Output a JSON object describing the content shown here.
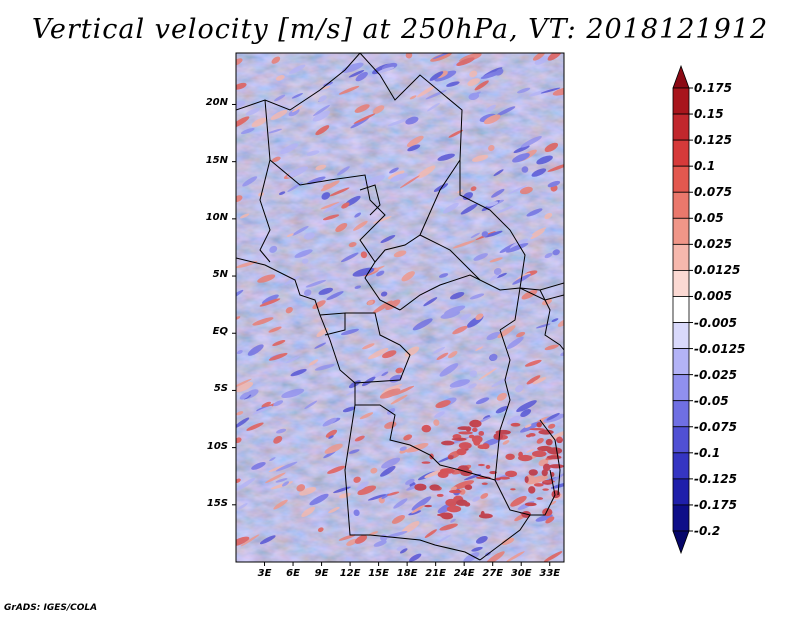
{
  "title": "Vertical velocity [m/s] at 250hPa, VT: 2018121912",
  "credit": "GrADS: IGES/COLA",
  "map": {
    "variable": "Vertical velocity",
    "units": "m/s",
    "level": "250hPa",
    "valid_time": "2018121912",
    "extent": {
      "lon_min": 0,
      "lon_max": 34.5,
      "lat_min": -20,
      "lat_max": 24.5
    },
    "lat_ticks": [
      {
        "lat": 20,
        "label": "20N"
      },
      {
        "lat": 15,
        "label": "15N"
      },
      {
        "lat": 10,
        "label": "10N"
      },
      {
        "lat": 5,
        "label": "5N"
      },
      {
        "lat": 0,
        "label": "EQ"
      },
      {
        "lat": -5,
        "label": "5S"
      },
      {
        "lat": -10,
        "label": "10S"
      },
      {
        "lat": -15,
        "label": "15S"
      }
    ],
    "lon_ticks": [
      {
        "lon": 3,
        "label": "3E"
      },
      {
        "lon": 6,
        "label": "6E"
      },
      {
        "lon": 9,
        "label": "9E"
      },
      {
        "lon": 12,
        "label": "12E"
      },
      {
        "lon": 15,
        "label": "15E"
      },
      {
        "lon": 18,
        "label": "18E"
      },
      {
        "lon": 21,
        "label": "21E"
      },
      {
        "lon": 24,
        "label": "24E"
      },
      {
        "lon": 27,
        "label": "27E"
      },
      {
        "lon": 30,
        "label": "30E"
      },
      {
        "lon": 33,
        "label": "33E"
      }
    ]
  },
  "colorbar": {
    "labels": [
      "0.175",
      "0.15",
      "0.125",
      "0.1",
      "0.075",
      "0.05",
      "0.025",
      "0.0125",
      "0.005",
      "-0.005",
      "-0.0125",
      "-0.025",
      "-0.05",
      "-0.075",
      "-0.1",
      "-0.125",
      "-0.175",
      "-0.2"
    ],
    "colors": [
      "#8b0a14",
      "#a8151c",
      "#c1272d",
      "#d63a3a",
      "#e3584f",
      "#ea786c",
      "#f09688",
      "#f6b8ad",
      "#fbd9d3",
      "#ffffff",
      "#d9d9fb",
      "#b3b3f6",
      "#9090ee",
      "#6f6fe3",
      "#5050d4",
      "#3535c2",
      "#1f1faa",
      "#0e0e88",
      "#06066a"
    ]
  }
}
